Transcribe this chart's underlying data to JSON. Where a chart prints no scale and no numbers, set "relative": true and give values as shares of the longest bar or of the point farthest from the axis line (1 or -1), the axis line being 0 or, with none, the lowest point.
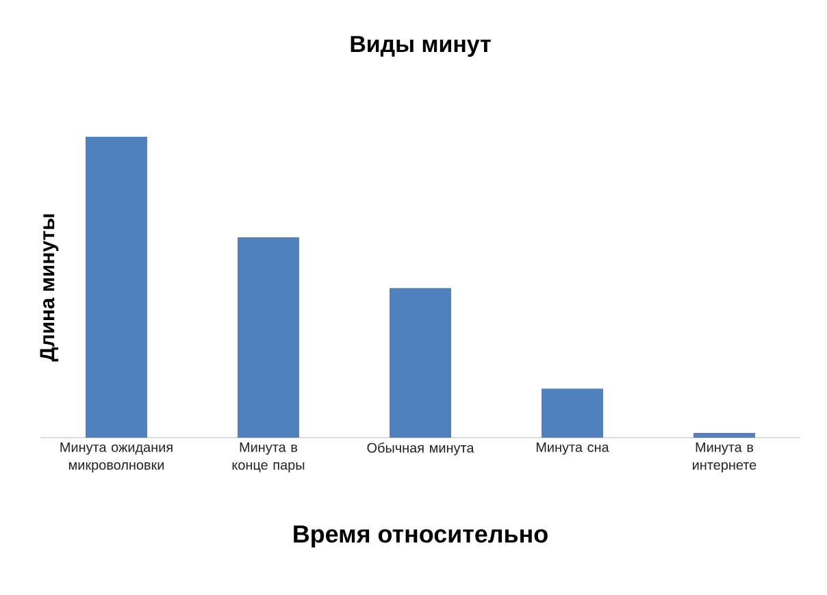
{
  "chart_data": {
    "type": "bar",
    "title": "Виды минут",
    "xlabel": "Время относительно",
    "ylabel": "Длина минуты",
    "categories": [
      "Минута ожидания микроволновки",
      "Минута в конце пары",
      "Обычная минута",
      "Минута сна",
      "Минута в интернете"
    ],
    "values": [
      1,
      0.666,
      0.497,
      0.163,
      0.016
    ],
    "color": "#4f81bd",
    "relative": true
  }
}
